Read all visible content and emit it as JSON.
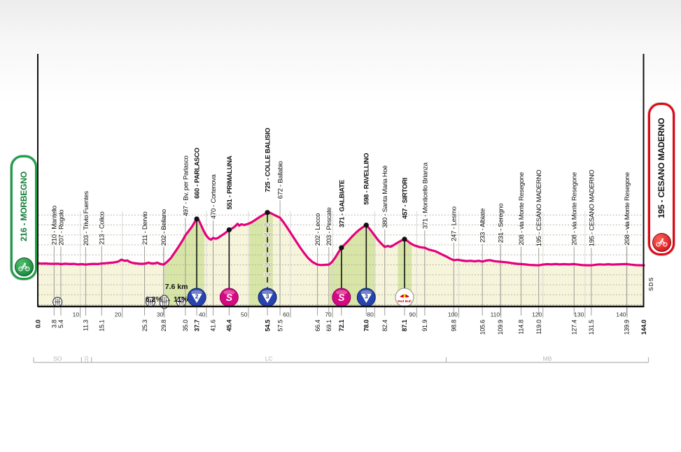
{
  "chart_data": {
    "type": "area",
    "title": "Giro stage altimetry profile",
    "x_unit": "km",
    "y_unit": "m",
    "xlim": [
      0,
      144
    ],
    "grid": "dotted horizontal every 100 m, light vertical every 10 km",
    "profile_color": "#e5007d",
    "area_color": "#f7f4dc",
    "climb_band_color": "#d7e5a6",
    "profile": [
      [
        0,
        216
      ],
      [
        0.8,
        212
      ],
      [
        1.6,
        214
      ],
      [
        2.6,
        211
      ],
      [
        3.8,
        210
      ],
      [
        4.6,
        212
      ],
      [
        5.4,
        207
      ],
      [
        6.5,
        211
      ],
      [
        7.5,
        208
      ],
      [
        8.5,
        210
      ],
      [
        9.5,
        204
      ],
      [
        10.4,
        207
      ],
      [
        11.3,
        203
      ],
      [
        12.2,
        207
      ],
      [
        13.2,
        210
      ],
      [
        14.1,
        208
      ],
      [
        15.1,
        213
      ],
      [
        16,
        216
      ],
      [
        17,
        220
      ],
      [
        18,
        224
      ],
      [
        19,
        232
      ],
      [
        19.8,
        252
      ],
      [
        20.6,
        240
      ],
      [
        21.2,
        244
      ],
      [
        21.8,
        228
      ],
      [
        22.6,
        218
      ],
      [
        23.4,
        214
      ],
      [
        24.4,
        210
      ],
      [
        25.3,
        211
      ],
      [
        26.2,
        222
      ],
      [
        27,
        213
      ],
      [
        27.7,
        215
      ],
      [
        28.3,
        222
      ],
      [
        29,
        210
      ],
      [
        29.8,
        202
      ],
      [
        30.6,
        228
      ],
      [
        31.6,
        270
      ],
      [
        32.6,
        332
      ],
      [
        33.6,
        396
      ],
      [
        34.4,
        450
      ],
      [
        35,
        497
      ],
      [
        35.8,
        540
      ],
      [
        36.6,
        585
      ],
      [
        37.2,
        628
      ],
      [
        37.7,
        660
      ],
      [
        38.2,
        646
      ],
      [
        38.8,
        592
      ],
      [
        39.4,
        536
      ],
      [
        40,
        492
      ],
      [
        40.6,
        463
      ],
      [
        41.1,
        452
      ],
      [
        41.6,
        470
      ],
      [
        42.2,
        461
      ],
      [
        42.8,
        471
      ],
      [
        43.4,
        489
      ],
      [
        44,
        505
      ],
      [
        44.7,
        527
      ],
      [
        45.4,
        551
      ],
      [
        46.2,
        567
      ],
      [
        46.9,
        589
      ],
      [
        47.4,
        612
      ],
      [
        47.8,
        593
      ],
      [
        48.3,
        607
      ],
      [
        49,
        599
      ],
      [
        49.8,
        609
      ],
      [
        50.6,
        624
      ],
      [
        51.4,
        644
      ],
      [
        52.2,
        667
      ],
      [
        53,
        689
      ],
      [
        53.8,
        709
      ],
      [
        54.5,
        725
      ],
      [
        55.3,
        719
      ],
      [
        56.1,
        701
      ],
      [
        56.8,
        686
      ],
      [
        57.5,
        672
      ],
      [
        58.3,
        629
      ],
      [
        59.2,
        574
      ],
      [
        60.2,
        509
      ],
      [
        61.2,
        444
      ],
      [
        62.2,
        379
      ],
      [
        63.2,
        319
      ],
      [
        64.2,
        267
      ],
      [
        65.2,
        229
      ],
      [
        66.4,
        202
      ],
      [
        67.3,
        198
      ],
      [
        68.2,
        200
      ],
      [
        69.1,
        203
      ],
      [
        69.8,
        226
      ],
      [
        70.6,
        271
      ],
      [
        71.4,
        326
      ],
      [
        72.1,
        371
      ],
      [
        72.9,
        406
      ],
      [
        73.7,
        441
      ],
      [
        74.5,
        478
      ],
      [
        75.3,
        512
      ],
      [
        76.1,
        544
      ],
      [
        76.9,
        569
      ],
      [
        77.5,
        587
      ],
      [
        78,
        598
      ],
      [
        78.6,
        571
      ],
      [
        79.3,
        534
      ],
      [
        80,
        494
      ],
      [
        80.8,
        449
      ],
      [
        81.6,
        411
      ],
      [
        82.4,
        380
      ],
      [
        83.1,
        389
      ],
      [
        83.8,
        381
      ],
      [
        84.5,
        398
      ],
      [
        85.2,
        416
      ],
      [
        86,
        436
      ],
      [
        86.6,
        449
      ],
      [
        87.1,
        457
      ],
      [
        87.8,
        439
      ],
      [
        88.5,
        417
      ],
      [
        89.2,
        399
      ],
      [
        90,
        387
      ],
      [
        90.8,
        377
      ],
      [
        91.9,
        371
      ],
      [
        92.8,
        354
      ],
      [
        93.6,
        345
      ],
      [
        94.4,
        337
      ],
      [
        95.2,
        321
      ],
      [
        96,
        304
      ],
      [
        97,
        284
      ],
      [
        98,
        261
      ],
      [
        98.8,
        247
      ],
      [
        99.8,
        251
      ],
      [
        100.8,
        243
      ],
      [
        101.8,
        238
      ],
      [
        102.8,
        241
      ],
      [
        103.8,
        235
      ],
      [
        104.7,
        241
      ],
      [
        105.6,
        233
      ],
      [
        106.5,
        243
      ],
      [
        107.4,
        247
      ],
      [
        108.3,
        238
      ],
      [
        109.1,
        234
      ],
      [
        109.9,
        231
      ],
      [
        111,
        227
      ],
      [
        112,
        222
      ],
      [
        113,
        215
      ],
      [
        114,
        210
      ],
      [
        114.8,
        208
      ],
      [
        115.8,
        204
      ],
      [
        116.8,
        199
      ],
      [
        117.9,
        197
      ],
      [
        119,
        195
      ],
      [
        120,
        203
      ],
      [
        121,
        207
      ],
      [
        122,
        204
      ],
      [
        123,
        208
      ],
      [
        124,
        204
      ],
      [
        125,
        207
      ],
      [
        126.2,
        204
      ],
      [
        127.4,
        208
      ],
      [
        128.4,
        202
      ],
      [
        129.4,
        197
      ],
      [
        130.4,
        196
      ],
      [
        131.5,
        195
      ],
      [
        132.5,
        201
      ],
      [
        133.5,
        205
      ],
      [
        134.5,
        202
      ],
      [
        135.5,
        206
      ],
      [
        136.5,
        203
      ],
      [
        137.5,
        204
      ],
      [
        138.7,
        206
      ],
      [
        139.9,
        208
      ],
      [
        140.9,
        202
      ],
      [
        142,
        197
      ],
      [
        143,
        196
      ],
      [
        144,
        195
      ]
    ],
    "locations": [
      {
        "km": 0.0,
        "elev": 216,
        "name": "MORBEGNO",
        "bold": true,
        "marker": null,
        "endpoint": true
      },
      {
        "km": 3.8,
        "elev": 210,
        "name": "Mantello",
        "bold": false,
        "marker": null
      },
      {
        "km": 5.4,
        "elev": 207,
        "name": "Rogolo",
        "bold": false,
        "marker": null
      },
      {
        "km": 11.3,
        "elev": 203,
        "name": "Trivio Fuentes",
        "bold": false,
        "marker": null
      },
      {
        "km": 15.1,
        "elev": 213,
        "name": "Colico",
        "bold": false,
        "marker": null
      },
      {
        "km": 25.3,
        "elev": 211,
        "name": "Dervio",
        "bold": false,
        "marker": null
      },
      {
        "km": 29.8,
        "elev": 202,
        "name": "Bellano",
        "bold": false,
        "marker": null
      },
      {
        "km": 35.0,
        "elev": 497,
        "name": "Bv. per Parlasco",
        "bold": false,
        "marker": null
      },
      {
        "km": 37.7,
        "elev": 660,
        "name": "PARLASCO",
        "bold": true,
        "marker": "climb-2"
      },
      {
        "km": 41.6,
        "elev": 470,
        "name": "Cortenova",
        "bold": false,
        "marker": null
      },
      {
        "km": 45.4,
        "elev": 551,
        "name": "PRIMALUNA",
        "bold": true,
        "marker": "sprint"
      },
      {
        "km": 54.5,
        "elev": 725,
        "name": "COLLE BALISIO",
        "bold": true,
        "marker": "climb-3"
      },
      {
        "km": 57.5,
        "elev": 672,
        "name": "Ballabio",
        "bold": false,
        "marker": null
      },
      {
        "km": 66.4,
        "elev": 202,
        "name": "Lecco",
        "bold": false,
        "marker": null
      },
      {
        "km": 69.1,
        "elev": 203,
        "name": "Pescate",
        "bold": false,
        "marker": null
      },
      {
        "km": 72.1,
        "elev": 371,
        "name": "GALBIATE",
        "bold": true,
        "marker": "sprint"
      },
      {
        "km": 78.0,
        "elev": 598,
        "name": "RAVELLINO",
        "bold": true,
        "marker": "climb-3"
      },
      {
        "km": 82.4,
        "elev": 380,
        "name": "Santa Maria Hoè",
        "bold": false,
        "marker": null
      },
      {
        "km": 87.1,
        "elev": 457,
        "name": "SIRTORI",
        "bold": true,
        "marker": "redbull"
      },
      {
        "km": 91.9,
        "elev": 371,
        "name": "Monticello Brianza",
        "bold": false,
        "marker": null
      },
      {
        "km": 98.8,
        "elev": 247,
        "name": "Lesmo",
        "bold": false,
        "marker": null
      },
      {
        "km": 105.6,
        "elev": 233,
        "name": "Albiate",
        "bold": false,
        "marker": null
      },
      {
        "km": 109.9,
        "elev": 231,
        "name": "Seregno",
        "bold": false,
        "marker": null
      },
      {
        "km": 114.8,
        "elev": 208,
        "name": "via Monte Resegone",
        "bold": false,
        "marker": null
      },
      {
        "km": 119.0,
        "elev": 195,
        "name": "CESANO MADERNO",
        "bold": false,
        "marker": null
      },
      {
        "km": 127.4,
        "elev": 208,
        "name": "via Monte Resegone",
        "bold": false,
        "marker": null
      },
      {
        "km": 131.5,
        "elev": 195,
        "name": "CESANO MADERNO",
        "bold": false,
        "marker": null
      },
      {
        "km": 139.9,
        "elev": 208,
        "name": "via Monte Resegone",
        "bold": false,
        "marker": null
      },
      {
        "km": 144.0,
        "elev": 195,
        "name": "CESANO MADERNO",
        "bold": true,
        "marker": null,
        "endpoint": true
      }
    ],
    "climb_bands": [
      [
        29.8,
        39.5
      ],
      [
        50.2,
        55.8
      ],
      [
        69.3,
        80.2
      ],
      [
        85.5,
        88.8
      ]
    ],
    "tunnels": [
      {
        "km": 4.6,
        "tall": false
      },
      {
        "km": 26.7,
        "tall": false
      },
      {
        "km": 30.0,
        "tall": true
      },
      {
        "km": 34.0,
        "tall": false
      }
    ],
    "km_ticks": [
      10,
      20,
      30,
      40,
      50,
      60,
      70,
      80,
      90,
      100,
      110,
      120,
      130,
      140
    ],
    "elev_scale": {
      "at_km": 54.5,
      "values": [
        0,
        100,
        200,
        300,
        400,
        500,
        600
      ]
    },
    "climb_annotation": {
      "line1": "7.6 km",
      "line2": "6.2% → 11%",
      "anchor_km": 35.6
    },
    "provinces": [
      {
        "code": "SO",
        "from_km": 0,
        "to_km": 10.3,
        "rotated": false
      },
      {
        "code": "CO",
        "from_km": 10.3,
        "to_km": 12.7,
        "rotated": true
      },
      {
        "code": "LC",
        "from_km": 12.7,
        "to_km": 97,
        "rotated": false
      },
      {
        "code": "MB",
        "from_km": 97,
        "to_km": 144,
        "rotated": false
      }
    ],
    "start_box": {
      "label": "216 - MORBEGNO",
      "color": "#18a045"
    },
    "finish_box": {
      "label": "195 - CESANO MADERNO",
      "color": "#e30613"
    },
    "watermark": "SDS",
    "marker_colors": {
      "climb_blue": "#2743ae",
      "sprint_magenta": "#d40a82",
      "redbull_red": "#d40000"
    }
  }
}
